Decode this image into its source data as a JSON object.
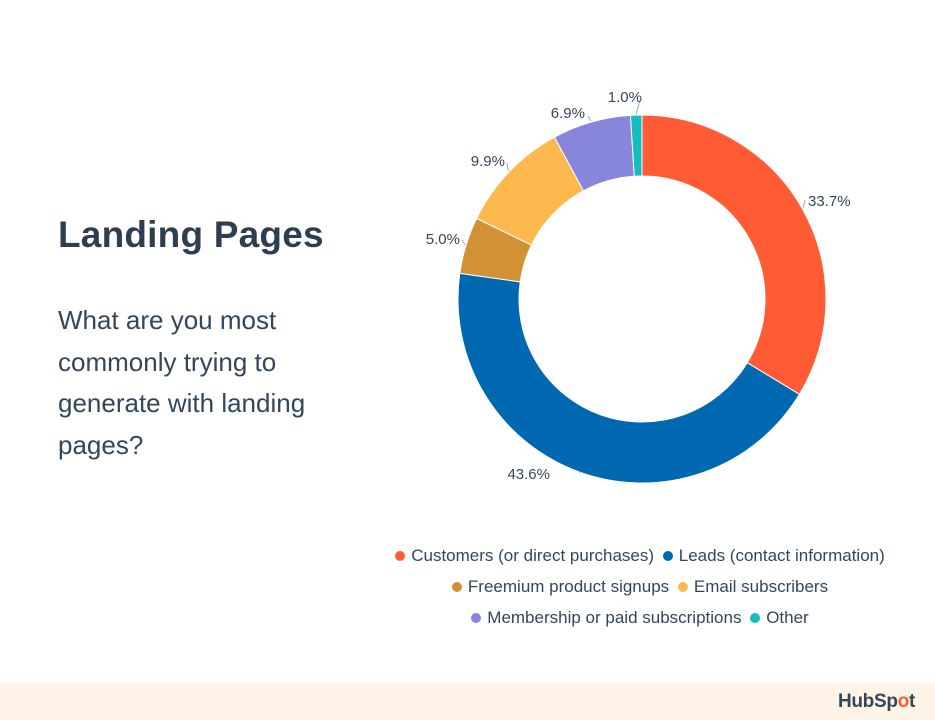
{
  "header": {
    "title": "Landing Pages",
    "question": "What are you most commonly trying to generate with landing pages?"
  },
  "chart_data": {
    "type": "pie",
    "subtype": "donut",
    "title": "Landing Pages",
    "subtitle": "What are you most commonly trying to generate with landing pages?",
    "categories": [
      "Customers (or direct purchases)",
      "Leads (contact information)",
      "Freemium product signups",
      "Email subscribers",
      "Membership or paid subscriptions",
      "Other"
    ],
    "values": [
      33.7,
      43.6,
      5.0,
      9.9,
      6.9,
      1.0
    ],
    "labels": [
      "33.7%",
      "43.6%",
      "5.0%",
      "9.9%",
      "6.9%",
      "1.0%"
    ],
    "colors": [
      "#ff5c35",
      "#0068b1",
      "#d39136",
      "#fdb84e",
      "#8886dc",
      "#17bcbc"
    ],
    "legend_position": "bottom",
    "start_angle": "12 o'clock, clockwise"
  },
  "legend": {
    "rows": [
      [
        {
          "label": "Customers (or direct purchases)",
          "color": "#ff5c35"
        },
        {
          "label": "Leads (contact information)",
          "color": "#0068b1"
        }
      ],
      [
        {
          "label": "Freemium product signups",
          "color": "#d39136"
        },
        {
          "label": "Email subscribers",
          "color": "#fdb84e"
        }
      ],
      [
        {
          "label": "Membership or paid subscriptions",
          "color": "#8886dc"
        },
        {
          "label": "Other",
          "color": "#17bcbc"
        }
      ]
    ]
  },
  "footer": {
    "logo_pre": "HubSp",
    "logo_o": "o",
    "logo_post": "t",
    "background": "#fdf3e7"
  }
}
